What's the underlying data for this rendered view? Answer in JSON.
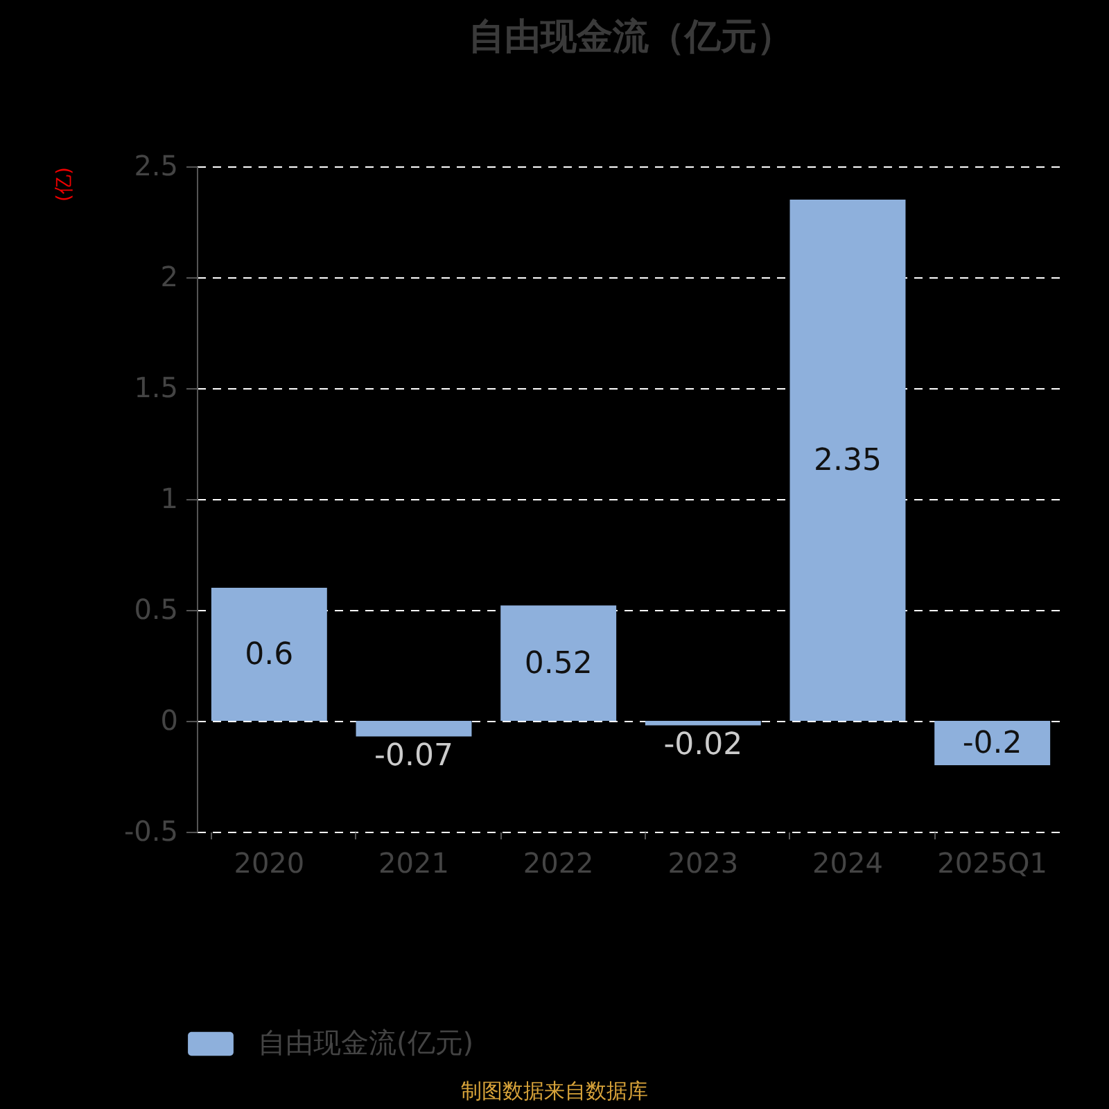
{
  "chart_data": {
    "type": "bar",
    "title": "自由现金流（亿元）",
    "ylabel": "(亿)",
    "categories": [
      "2020",
      "2021",
      "2022",
      "2023",
      "2024",
      "2025Q1"
    ],
    "series": [
      {
        "name": "自由现金流(亿元)",
        "color": "#8eb0dc",
        "values": [
          0.6,
          -0.07,
          0.52,
          -0.02,
          2.35,
          -0.2
        ]
      }
    ],
    "ylim": [
      -0.5,
      2.5
    ],
    "yticks": [
      -0.5,
      0,
      0.5,
      1,
      1.5,
      2,
      2.5
    ],
    "grid": "y",
    "legend": "bottom",
    "data_labels": true,
    "annotations": [
      "制图数据来自数据库"
    ]
  }
}
